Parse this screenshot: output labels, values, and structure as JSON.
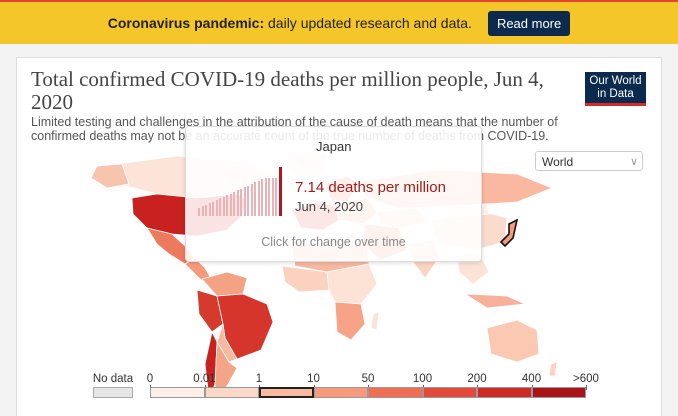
{
  "banner": {
    "bold_text": "Coronavirus pandemic:",
    "text": " daily updated research and data.",
    "button_label": "Read more"
  },
  "chart": {
    "title": "Total confirmed COVID-19 deaths per million people, Jun 4, 2020",
    "subtitle": "Limited testing and challenges in the attribution of the cause of death means that the number of confirmed deaths may not be an accurate count of the true number of deaths from COVID-19.",
    "logo_line1": "Our World",
    "logo_line2": "in Data",
    "region_select": "World"
  },
  "tooltip": {
    "country": "Japan",
    "value": "7.14 deaths per million",
    "date": "Jun 4, 2020",
    "hint": "Click for change over time"
  },
  "chart_data": {
    "type": "choropleth-map",
    "date": "Jun 4, 2020",
    "metric": "Total confirmed COVID-19 deaths per million people",
    "highlighted": {
      "country": "Japan",
      "value": 7.14
    },
    "legend": {
      "no_data_label": "No data",
      "bins": [
        "0",
        "0.01",
        "1",
        "10",
        "50",
        "100",
        "200",
        "400",
        ">600"
      ],
      "colors": [
        "#fcefe8",
        "#fcd8c6",
        "#fab9a0",
        "#f79a7c",
        "#ef6f54",
        "#e34a3a",
        "#cc2a25",
        "#a81417"
      ],
      "selected_bin": [
        1,
        10
      ]
    }
  },
  "colors": {
    "banner_bg": "#f5c629",
    "button_bg": "#0c2a4d",
    "logo_bg": "#0b2a4d",
    "accent_red": "#d42a2a"
  }
}
